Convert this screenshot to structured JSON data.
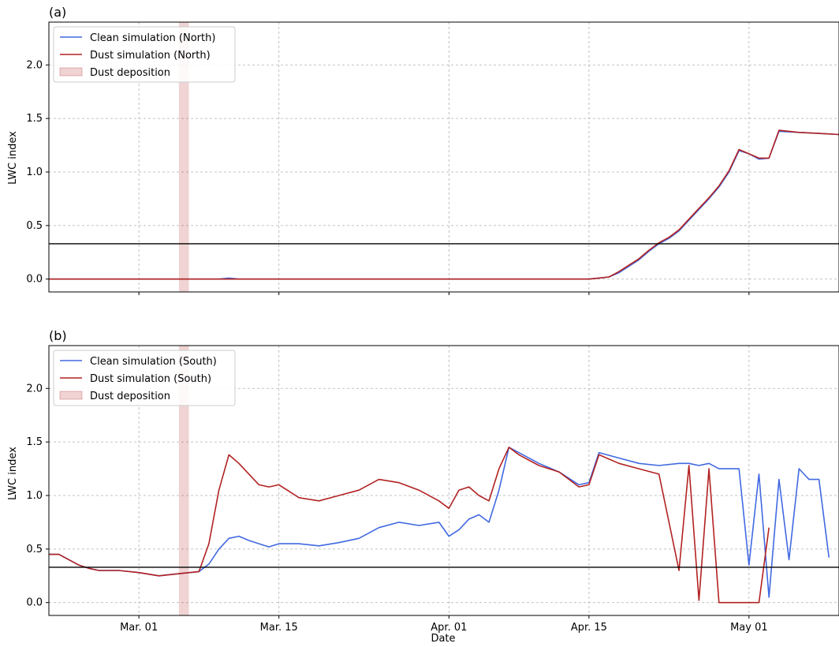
{
  "chart_data": [
    {
      "type": "line",
      "panel_label": "(a)",
      "title": "",
      "xlabel": "",
      "ylabel": "LWC index",
      "xlim": [
        "2020-02-21",
        "2020-05-10"
      ],
      "ylim": [
        -0.12,
        2.4
      ],
      "x_tick_labels": [],
      "y_ticks": [
        0.0,
        0.5,
        1.0,
        1.5,
        2.0
      ],
      "y_tick_labels": [
        "0.0",
        "0.5",
        "1.0",
        "1.5",
        "2.0"
      ],
      "grid": true,
      "legend_position": "top-left",
      "threshold_line": 0.33,
      "dust_deposition_span": [
        "2020-03-05",
        "2020-03-06"
      ],
      "legend": [
        "Clean simulation (North)",
        "Dust simulation (North)",
        "Dust deposition"
      ],
      "series": [
        {
          "name": "Clean simulation (North)",
          "color": "#4169e1",
          "x": [
            "2020-02-21",
            "2020-03-09",
            "2020-03-10",
            "2020-03-11",
            "2020-03-12",
            "2020-04-15",
            "2020-04-16",
            "2020-04-17",
            "2020-04-18",
            "2020-04-19",
            "2020-04-20",
            "2020-04-21",
            "2020-04-22",
            "2020-04-23",
            "2020-04-24",
            "2020-04-25",
            "2020-04-26",
            "2020-04-27",
            "2020-04-28",
            "2020-04-29",
            "2020-04-30",
            "2020-05-01",
            "2020-05-02",
            "2020-05-03",
            "2020-05-04",
            "2020-05-06",
            "2020-05-08",
            "2020-05-10"
          ],
          "y": [
            0.0,
            0.0,
            0.01,
            0.0,
            0.0,
            0.0,
            0.01,
            0.02,
            0.06,
            0.12,
            0.18,
            0.26,
            0.33,
            0.38,
            0.45,
            0.55,
            0.65,
            0.75,
            0.86,
            1.0,
            1.2,
            1.17,
            1.12,
            1.13,
            1.38,
            1.37,
            1.36,
            1.35
          ]
        },
        {
          "name": "Dust simulation (North)",
          "color": "#b22222",
          "x": [
            "2020-02-21",
            "2020-03-09",
            "2020-03-10",
            "2020-03-11",
            "2020-03-12",
            "2020-04-15",
            "2020-04-16",
            "2020-04-17",
            "2020-04-18",
            "2020-04-19",
            "2020-04-20",
            "2020-04-21",
            "2020-04-22",
            "2020-04-23",
            "2020-04-24",
            "2020-04-25",
            "2020-04-26",
            "2020-04-27",
            "2020-04-28",
            "2020-04-29",
            "2020-04-30",
            "2020-05-01",
            "2020-05-02",
            "2020-05-03",
            "2020-05-04",
            "2020-05-06",
            "2020-05-08",
            "2020-05-10"
          ],
          "y": [
            0.0,
            0.0,
            0.0,
            0.0,
            0.0,
            0.0,
            0.01,
            0.02,
            0.07,
            0.13,
            0.19,
            0.27,
            0.34,
            0.39,
            0.46,
            0.56,
            0.66,
            0.76,
            0.87,
            1.01,
            1.21,
            1.17,
            1.13,
            1.13,
            1.39,
            1.37,
            1.36,
            1.35
          ]
        }
      ]
    },
    {
      "type": "line",
      "panel_label": "(b)",
      "title": "",
      "xlabel": "Date",
      "ylabel": "LWC index",
      "xlim": [
        "2020-02-21",
        "2020-05-10"
      ],
      "ylim": [
        -0.12,
        2.4
      ],
      "x_ticks": [
        "2020-03-01",
        "2020-03-15",
        "2020-04-01",
        "2020-04-15",
        "2020-05-01"
      ],
      "x_tick_labels": [
        "Mar. 01",
        "Mar. 15",
        "Apr. 01",
        "Apr. 15",
        "May 01"
      ],
      "y_ticks": [
        0.0,
        0.5,
        1.0,
        1.5,
        2.0
      ],
      "y_tick_labels": [
        "0.0",
        "0.5",
        "1.0",
        "1.5",
        "2.0"
      ],
      "grid": true,
      "legend_position": "top-left",
      "threshold_line": 0.33,
      "dust_deposition_span": [
        "2020-03-05",
        "2020-03-06"
      ],
      "legend": [
        "Clean simulation (South)",
        "Dust simulation (South)",
        "Dust deposition"
      ],
      "series": [
        {
          "name": "Clean simulation (South)",
          "color": "#4169e1",
          "x": [
            "2020-02-21",
            "2020-02-22",
            "2020-02-23",
            "2020-02-24",
            "2020-02-25",
            "2020-02-26",
            "2020-02-27",
            "2020-02-28",
            "2020-03-01",
            "2020-03-03",
            "2020-03-05",
            "2020-03-07",
            "2020-03-08",
            "2020-03-09",
            "2020-03-10",
            "2020-03-11",
            "2020-03-12",
            "2020-03-13",
            "2020-03-14",
            "2020-03-15",
            "2020-03-17",
            "2020-03-19",
            "2020-03-21",
            "2020-03-23",
            "2020-03-25",
            "2020-03-27",
            "2020-03-29",
            "2020-03-31",
            "2020-04-01",
            "2020-04-02",
            "2020-04-03",
            "2020-04-04",
            "2020-04-05",
            "2020-04-06",
            "2020-04-07",
            "2020-04-08",
            "2020-04-10",
            "2020-04-12",
            "2020-04-14",
            "2020-04-15",
            "2020-04-16",
            "2020-04-18",
            "2020-04-20",
            "2020-04-22",
            "2020-04-24",
            "2020-04-25",
            "2020-04-26",
            "2020-04-27",
            "2020-04-28",
            "2020-04-29",
            "2020-04-30",
            "2020-05-01",
            "2020-05-02",
            "2020-05-03",
            "2020-05-04",
            "2020-05-05",
            "2020-05-06",
            "2020-05-07",
            "2020-05-08",
            "2020-05-09"
          ],
          "y": [
            0.45,
            0.45,
            0.4,
            0.35,
            0.32,
            0.3,
            0.3,
            0.3,
            0.28,
            0.25,
            0.27,
            0.29,
            0.36,
            0.5,
            0.6,
            0.62,
            0.58,
            0.55,
            0.52,
            0.55,
            0.55,
            0.53,
            0.56,
            0.6,
            0.7,
            0.75,
            0.72,
            0.75,
            0.62,
            0.68,
            0.78,
            0.82,
            0.75,
            1.05,
            1.45,
            1.4,
            1.3,
            1.22,
            1.1,
            1.12,
            1.4,
            1.35,
            1.3,
            1.28,
            1.3,
            1.3,
            1.28,
            1.3,
            1.25,
            1.25,
            1.25,
            0.35,
            1.2,
            0.05,
            1.15,
            0.4,
            1.25,
            1.15,
            1.15,
            0.42
          ]
        },
        {
          "name": "Dust simulation (South)",
          "color": "#b22222",
          "x": [
            "2020-02-21",
            "2020-02-22",
            "2020-02-23",
            "2020-02-24",
            "2020-02-25",
            "2020-02-26",
            "2020-02-27",
            "2020-02-28",
            "2020-03-01",
            "2020-03-03",
            "2020-03-05",
            "2020-03-07",
            "2020-03-08",
            "2020-03-09",
            "2020-03-10",
            "2020-03-11",
            "2020-03-12",
            "2020-03-13",
            "2020-03-14",
            "2020-03-15",
            "2020-03-17",
            "2020-03-19",
            "2020-03-21",
            "2020-03-23",
            "2020-03-25",
            "2020-03-27",
            "2020-03-29",
            "2020-03-31",
            "2020-04-01",
            "2020-04-02",
            "2020-04-03",
            "2020-04-04",
            "2020-04-05",
            "2020-04-06",
            "2020-04-07",
            "2020-04-08",
            "2020-04-10",
            "2020-04-12",
            "2020-04-14",
            "2020-04-15",
            "2020-04-16",
            "2020-04-18",
            "2020-04-20",
            "2020-04-22",
            "2020-04-24",
            "2020-04-25",
            "2020-04-26",
            "2020-04-27",
            "2020-04-28",
            "2020-04-29",
            "2020-04-30",
            "2020-05-01",
            "2020-05-02",
            "2020-05-03"
          ],
          "y": [
            0.45,
            0.45,
            0.4,
            0.35,
            0.32,
            0.3,
            0.3,
            0.3,
            0.28,
            0.25,
            0.27,
            0.29,
            0.55,
            1.05,
            1.38,
            1.3,
            1.2,
            1.1,
            1.08,
            1.1,
            0.98,
            0.95,
            1.0,
            1.05,
            1.15,
            1.12,
            1.05,
            0.95,
            0.88,
            1.05,
            1.08,
            1.0,
            0.95,
            1.25,
            1.45,
            1.38,
            1.28,
            1.22,
            1.08,
            1.1,
            1.38,
            1.3,
            1.25,
            1.2,
            0.3,
            1.28,
            0.02,
            1.25,
            0.0,
            0.0,
            0.0,
            0.0,
            0.0,
            0.7
          ]
        }
      ]
    }
  ]
}
